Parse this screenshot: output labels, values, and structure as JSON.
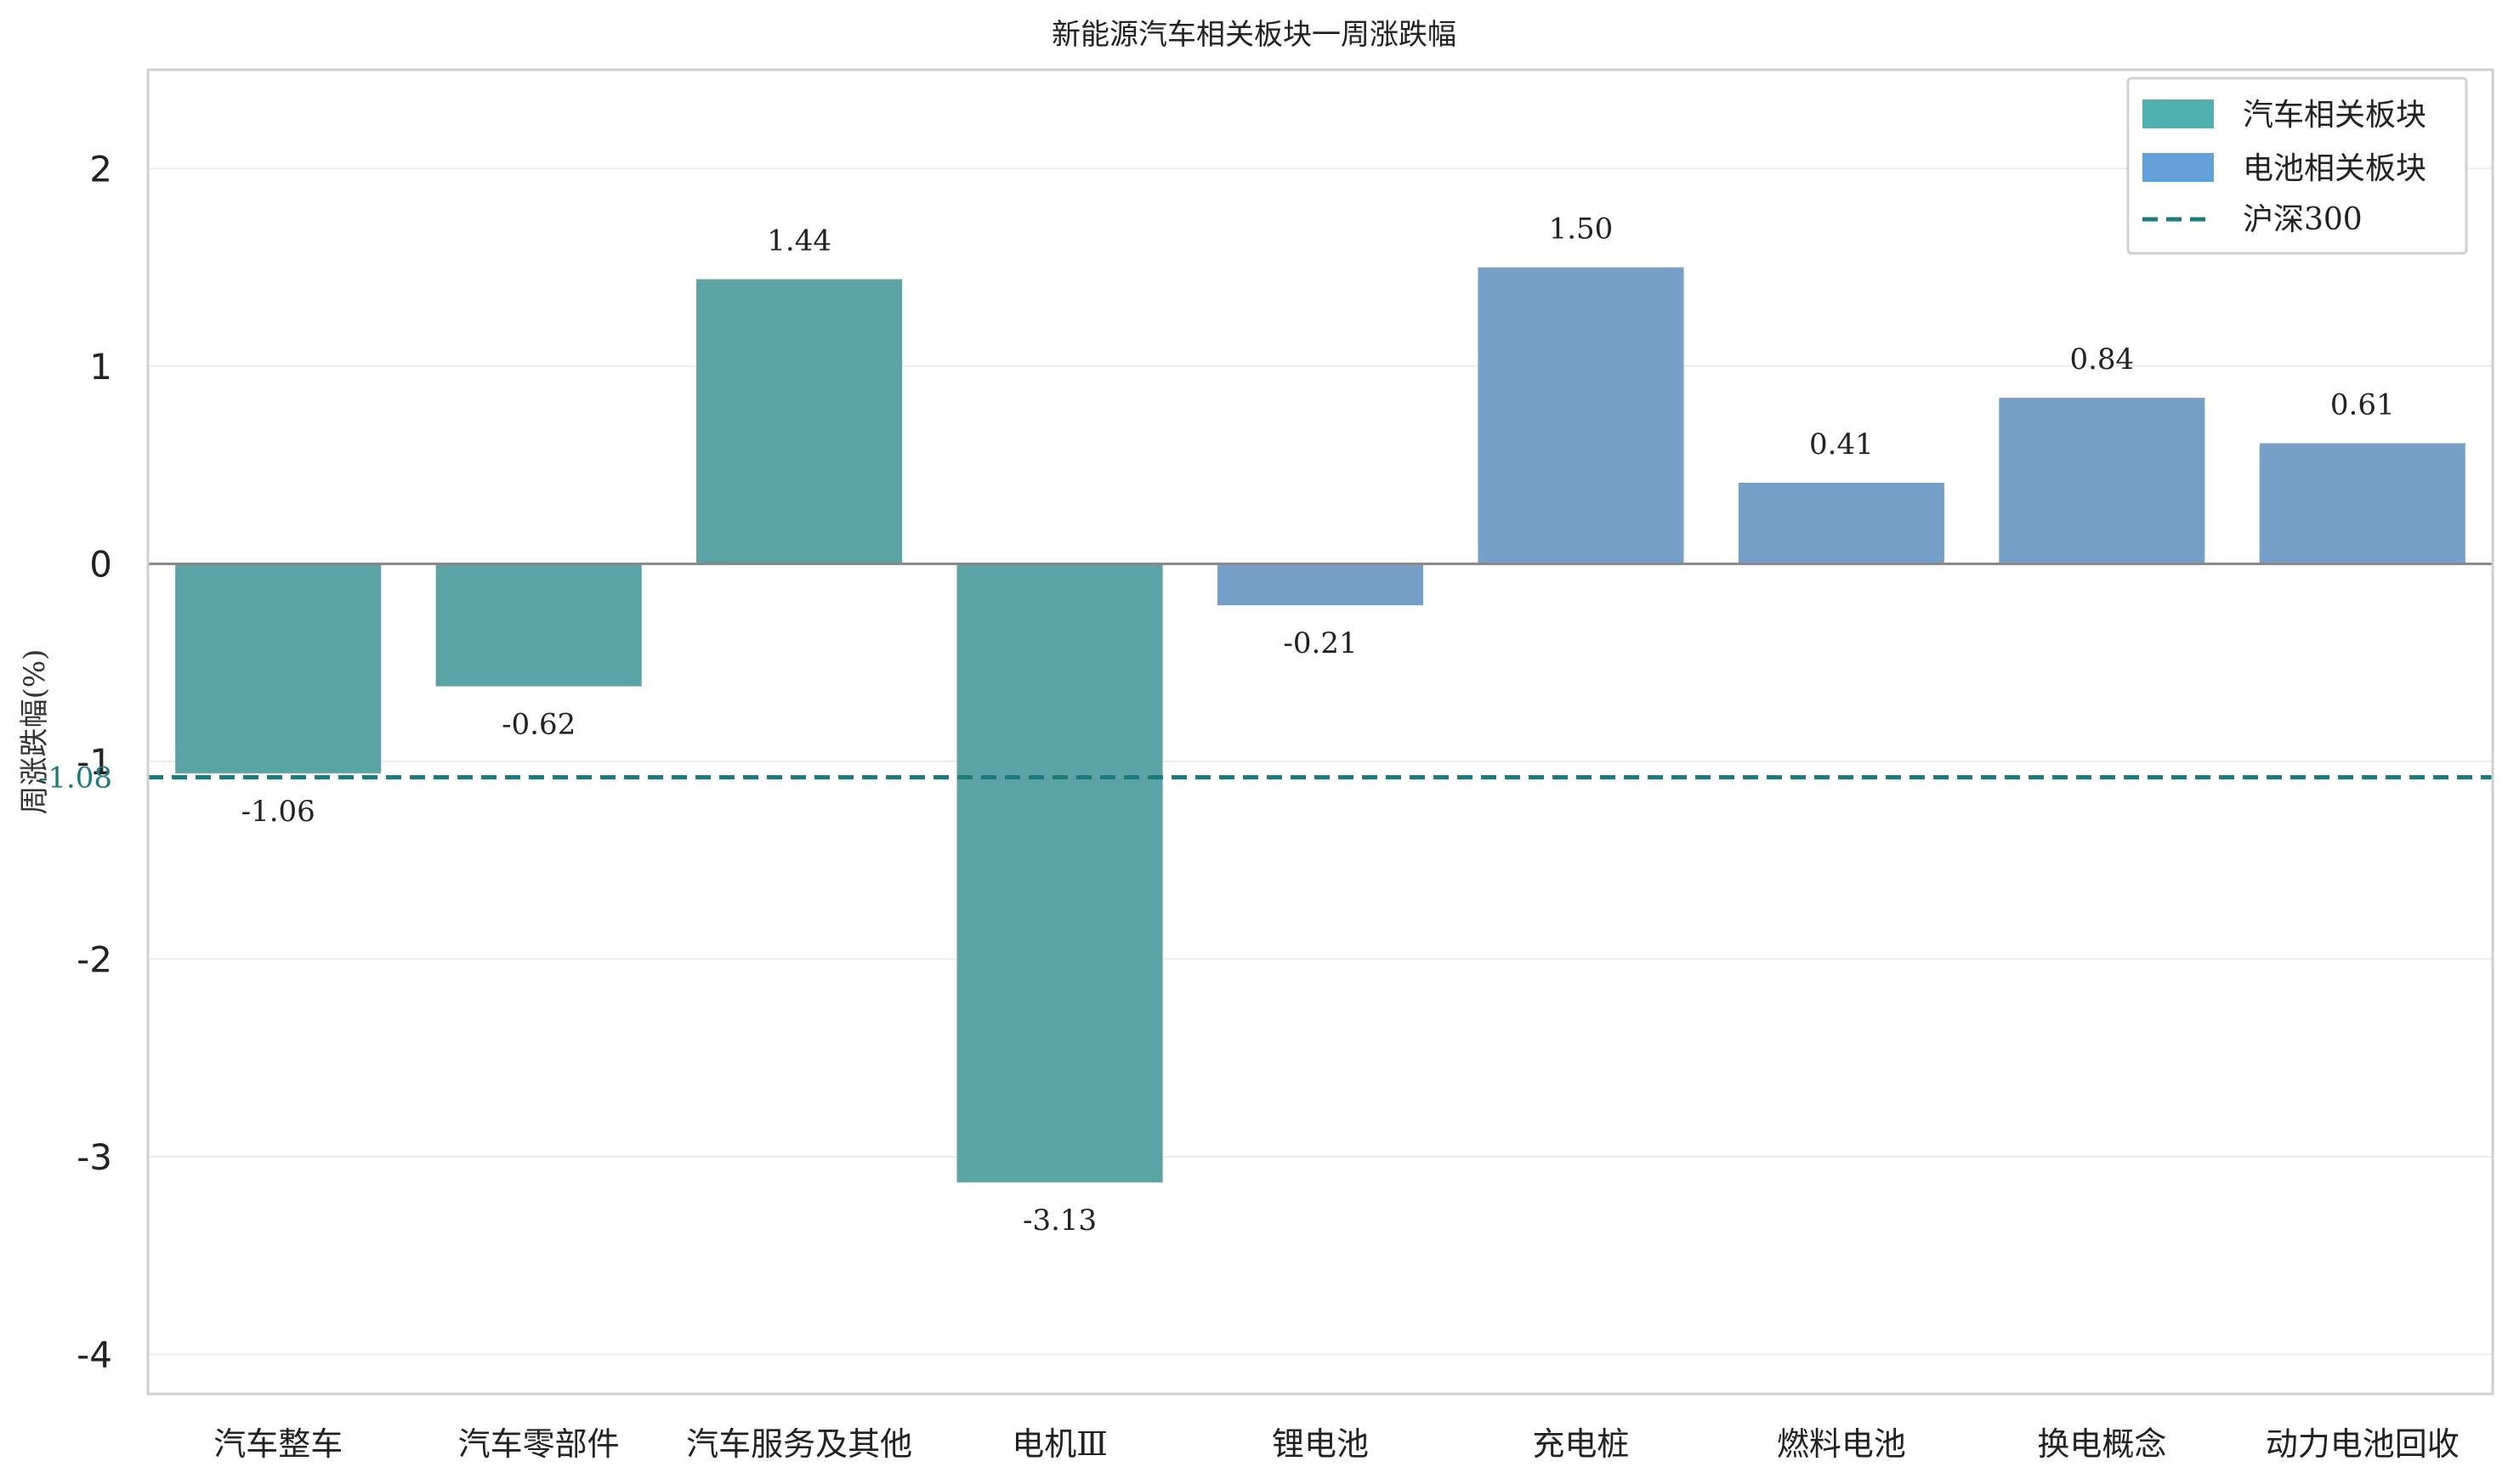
{
  "chart_data": {
    "type": "bar",
    "title": "新能源汽车相关板块一周涨跌幅",
    "xlabel": "",
    "ylabel": "周涨跌幅(%)",
    "ylim": [
      -4.2,
      2.5
    ],
    "yticks": [
      2,
      1,
      0,
      -1,
      -2,
      -3,
      -4
    ],
    "ytick_labels": [
      "2",
      "1",
      "0",
      "-1",
      "-2",
      "-3",
      "-4"
    ],
    "grid": true,
    "legend_position": "top-right",
    "categories": [
      "汽车整车",
      "汽车零部件",
      "汽车服务及其他",
      "电机Ⅲ",
      "锂电池",
      "充电桩",
      "燃料电池",
      "换电概念",
      "动力电池回收"
    ],
    "values": [
      -1.06,
      -0.62,
      1.44,
      -3.13,
      -0.21,
      1.5,
      0.41,
      0.84,
      0.61
    ],
    "value_labels": [
      "-1.06",
      "-0.62",
      "1.44",
      "-3.13",
      "-0.21",
      "1.50",
      "0.41",
      "0.84",
      "0.61"
    ],
    "groups": [
      "auto",
      "auto",
      "auto",
      "auto",
      "battery",
      "battery",
      "battery",
      "battery",
      "battery"
    ],
    "series": [
      {
        "key": "auto",
        "name": "汽车相关板块",
        "color": "#5ba3a5",
        "legend_color": "#4fb0ae"
      },
      {
        "key": "battery",
        "name": "电池相关板块",
        "color": "#77a0c8",
        "legend_color": "#64a0d8"
      }
    ],
    "reference_line": {
      "name": "沪深300",
      "value": -1.08,
      "label": "-1.08",
      "color": "#1f7b7b"
    }
  }
}
